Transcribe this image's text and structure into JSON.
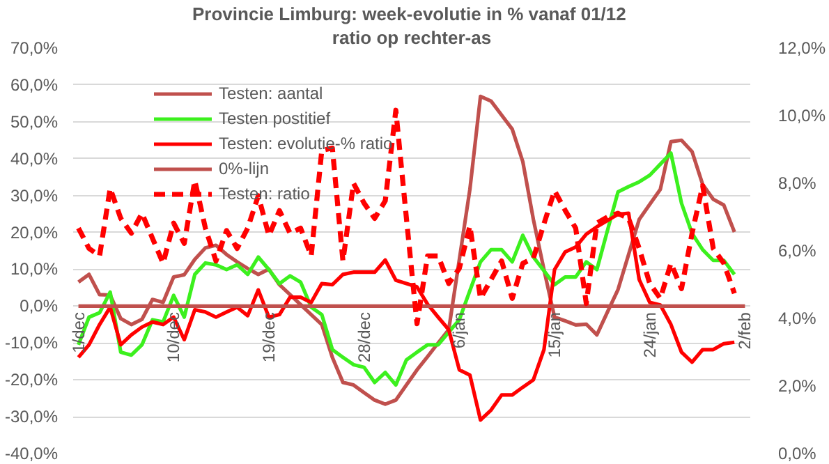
{
  "chart_data": {
    "type": "line",
    "title": "Provincie Limburg: week-evolutie in %  vanaf 01/12",
    "subtitle": "ratio op rechter-as",
    "categories": [
      "1/dec",
      null,
      null,
      null,
      null,
      null,
      null,
      null,
      null,
      "10/dec",
      null,
      null,
      null,
      null,
      null,
      null,
      null,
      null,
      "19/dec",
      null,
      null,
      null,
      null,
      null,
      null,
      null,
      null,
      "28/dec",
      null,
      null,
      null,
      null,
      null,
      null,
      null,
      null,
      "6/jan",
      null,
      null,
      null,
      null,
      null,
      null,
      null,
      null,
      "15/jan",
      null,
      null,
      null,
      null,
      null,
      null,
      null,
      null,
      "24/jan",
      null,
      null,
      null,
      null,
      null,
      null,
      null,
      null,
      "2/feb"
    ],
    "ylim": [
      -40,
      70
    ],
    "yticks": [
      {
        "value": -40,
        "label": "-40,0%"
      },
      {
        "value": -30,
        "label": "-30,0%"
      },
      {
        "value": -20,
        "label": "-20,0%"
      },
      {
        "value": -10,
        "label": "-10,0%"
      },
      {
        "value": 0,
        "label": "0,0%"
      },
      {
        "value": 10,
        "label": "10,0%"
      },
      {
        "value": 20,
        "label": "20,0%"
      },
      {
        "value": 30,
        "label": "30,0%"
      },
      {
        "value": 40,
        "label": "40,0%"
      },
      {
        "value": 50,
        "label": "50,0%"
      },
      {
        "value": 60,
        "label": "60,0%"
      },
      {
        "value": 70,
        "label": "70,0%"
      }
    ],
    "y2lim": [
      0,
      12
    ],
    "y2ticks": [
      {
        "value": 0,
        "label": "0,0%"
      },
      {
        "value": 2,
        "label": "2,0%"
      },
      {
        "value": 4,
        "label": "4,0%"
      },
      {
        "value": 6,
        "label": "6,0%"
      },
      {
        "value": 8,
        "label": "8,0%"
      },
      {
        "value": 10,
        "label": "10,0%"
      },
      {
        "value": 12,
        "label": "12,0%"
      }
    ],
    "grid": "y",
    "legend": "top left",
    "marker": "none",
    "series": [
      {
        "name": "Testen: aantal",
        "color": "#c0504d",
        "line_style": "solid",
        "values": [
          6.5,
          8.6,
          3.1,
          3,
          -3.4,
          -5,
          -3.6,
          1.8,
          1,
          7.9,
          8.5,
          12.7,
          15.8,
          16.5,
          14,
          12,
          10.2,
          8.6,
          10,
          5.8,
          3.1,
          0.4,
          -2.3,
          -5,
          -13.9,
          -20.7,
          -21.4,
          -23.5,
          -25.5,
          -26.6,
          -25.5,
          -21.4,
          -17.3,
          -13.7,
          -10,
          -6.4,
          12.6,
          31.7,
          56.9,
          55.6,
          51.8,
          48,
          39.2,
          23.5,
          9.9,
          -3,
          -4,
          -5.1,
          -4.9,
          -7.8,
          -1.6,
          4.5,
          14,
          23.5,
          27.6,
          31.7,
          44.6,
          45,
          41.9,
          33,
          29,
          27.4,
          20.1,
          null
        ]
      },
      {
        "name": "Testen postitief",
        "color": "#3cf01e",
        "line_style": "solid",
        "values": [
          -10.5,
          -3,
          -1.8,
          3.8,
          -12.5,
          -13.3,
          -10.5,
          -3.7,
          -4.3,
          2.9,
          -3,
          8.6,
          11.7,
          11.2,
          9.9,
          11.2,
          8.6,
          13.3,
          9.9,
          6.1,
          8.2,
          6.5,
          -0.3,
          -2.3,
          -11.8,
          -13.9,
          -15.9,
          -16.6,
          -20.7,
          -18,
          -21.4,
          -14.6,
          -12.5,
          -10.5,
          -10.5,
          -7.1,
          -3.7,
          4.2,
          12,
          15.3,
          15.3,
          12,
          19.2,
          13.3,
          9.6,
          5.8,
          7.9,
          7.9,
          12,
          9.9,
          20.5,
          31,
          32.4,
          33.7,
          35.5,
          38.5,
          41.5,
          27.9,
          19.7,
          15.3,
          12.4,
          12.4,
          8.6,
          null
        ]
      },
      {
        "name": "Testen: evolutie-% ratio",
        "color": "#ff0000",
        "line_style": "solid",
        "values": [
          -13.9,
          -10.5,
          -5,
          -0.3,
          -10.5,
          -7.8,
          -5.7,
          -4.3,
          -5,
          -3,
          -9.1,
          -1,
          -1.6,
          -3,
          -1.6,
          -0.3,
          -2.6,
          4.4,
          -3,
          -2.3,
          2.4,
          2.4,
          1,
          6.1,
          5.8,
          8.6,
          9.2,
          9.2,
          9.2,
          12.5,
          7,
          6.1,
          5.2,
          0.5,
          -3,
          -6.4,
          -17.3,
          -18.7,
          -30.9,
          -28.2,
          -24.1,
          -24.1,
          -22,
          -20,
          -11.8,
          9.9,
          14.7,
          16,
          19.5,
          21.5,
          23.2,
          24.9,
          25.2,
          7.2,
          1,
          0.3,
          -5,
          -12.5,
          -15.2,
          -11.8,
          -11.8,
          -10.2,
          -9.8,
          null
        ]
      },
      {
        "name": "0%-lijn",
        "color": "#c0504d",
        "line_style": "solid",
        "values": [
          0,
          0,
          0,
          0,
          0,
          0,
          0,
          0,
          0,
          0,
          0,
          0,
          0,
          0,
          0,
          0,
          0,
          0,
          0,
          0,
          0,
          0,
          0,
          0,
          0,
          0,
          0,
          0,
          0,
          0,
          0,
          0,
          0,
          0,
          0,
          0,
          0,
          0,
          0,
          0,
          0,
          0,
          0,
          0,
          0,
          0,
          0,
          0,
          0,
          0,
          0,
          0,
          0,
          0,
          0,
          0,
          0,
          0,
          0,
          0,
          0,
          0,
          0,
          0
        ]
      },
      {
        "name": "Testen: ratio",
        "color": "#ff0000",
        "line_style": "dashed",
        "axis": "y2",
        "values": [
          6.67,
          6.07,
          5.85,
          7.85,
          6.96,
          6.52,
          7.11,
          6.37,
          5.63,
          6.82,
          6.22,
          8.08,
          6.67,
          5.7,
          6.6,
          6.07,
          6.67,
          7.63,
          6.45,
          7.19,
          6.52,
          6.67,
          5.85,
          8.97,
          9.04,
          5.7,
          8.0,
          7.41,
          6.96,
          7.48,
          10.16,
          6.96,
          3.84,
          5.85,
          5.85,
          5.03,
          5.48,
          6.74,
          4.59,
          5.15,
          5.7,
          4.59,
          5.63,
          5.78,
          6.8,
          7.78,
          7.2,
          6.67,
          4.44,
          6.82,
          7.0,
          7.11,
          6.96,
          6.07,
          5.03,
          4.59,
          5.63,
          4.88,
          6.52,
          7.93,
          6.07,
          5.63,
          4.74,
          null
        ]
      }
    ]
  }
}
